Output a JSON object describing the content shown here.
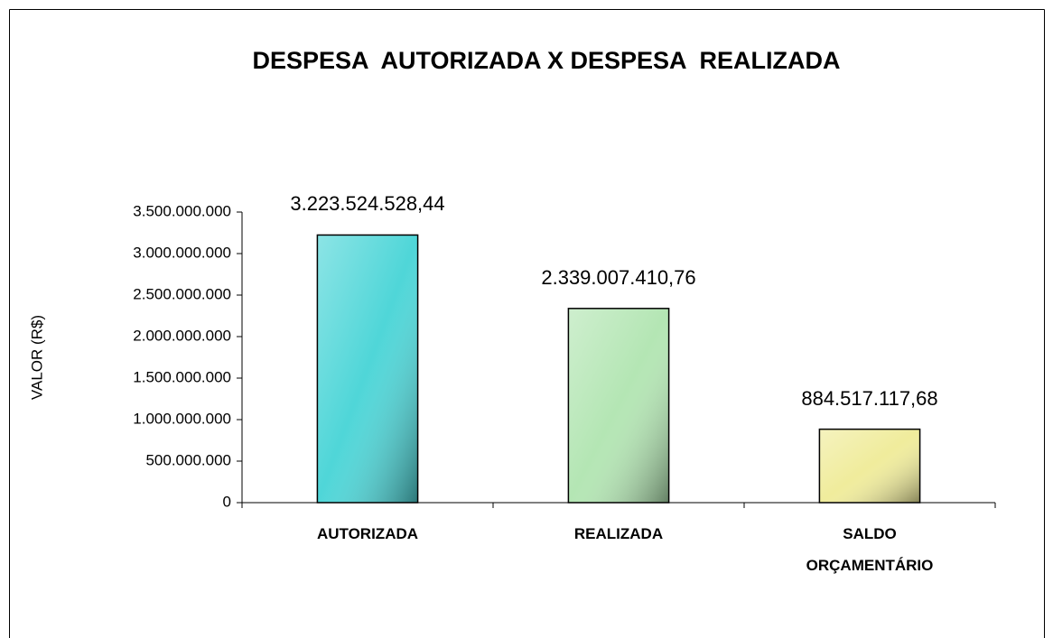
{
  "chart_data": {
    "type": "bar",
    "title": "DESPESA  AUTORIZADA X DESPESA  REALIZADA",
    "y_label": "VALOR (R$)",
    "categories": [
      "AUTORIZADA",
      "REALIZADA",
      "SALDO ORÇAMENTÁRIO"
    ],
    "values": [
      3223524528.44,
      2339007410.76,
      884517117.68
    ],
    "value_labels": [
      "3.223.524.528,44",
      "2.339.007.410,76",
      "884.517.117,68"
    ],
    "colors": [
      "#4fd6d8",
      "#b4e6b4",
      "#f0ec9c"
    ],
    "ylim": [
      0,
      3500000000
    ],
    "yticks": [
      0,
      {
        "value": 500000000,
        "label": "500.000.000"
      },
      {
        "value": 1000000000,
        "label": "1.000.000.000"
      },
      {
        "value": 1500000000,
        "label": "1.500.000.000"
      },
      {
        "value": 2000000000,
        "label": "2.000.000.000"
      },
      {
        "value": 2500000000,
        "label": "2.500.000.000"
      },
      {
        "value": 3000000000,
        "label": "3.000.000.000"
      },
      {
        "value": 3500000000,
        "label": "3.500.000.000"
      }
    ],
    "grid": false
  }
}
